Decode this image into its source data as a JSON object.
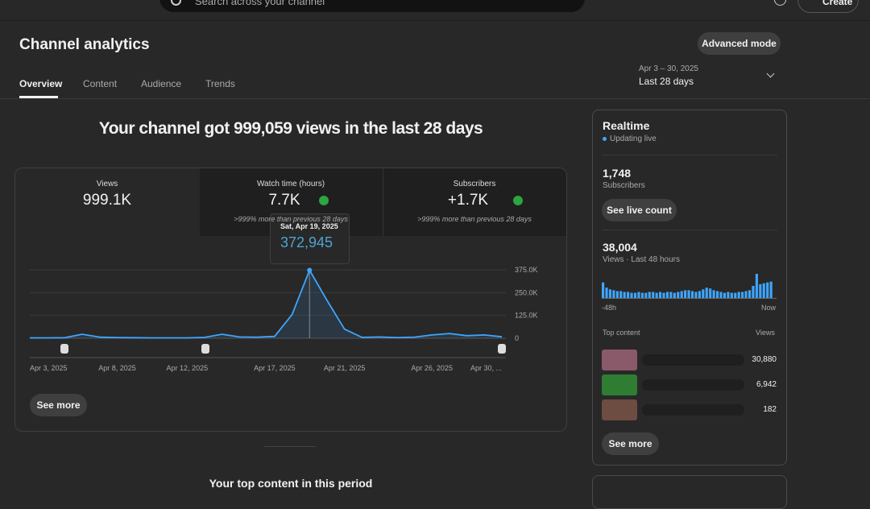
{
  "header": {
    "search_placeholder": "Search across your channel",
    "create": "Create"
  },
  "page": {
    "title": "Channel analytics",
    "advanced_mode": "Advanced mode",
    "tabs": [
      "Overview",
      "Content",
      "Audience",
      "Trends"
    ],
    "date_range": "Apr 3 – 30, 2025",
    "period": "Last 28 days"
  },
  "headline": "Your channel got 999,059 views in the last 28 days",
  "metrics": [
    {
      "label": "Views",
      "value": "999.1K"
    },
    {
      "label": "Watch time (hours)",
      "value": "7.7K",
      "note": ">999% more than previous 28 days"
    },
    {
      "label": "Subscribers",
      "value": "+1.7K",
      "note": ">999% more than previous 28 days"
    }
  ],
  "chart_data": {
    "type": "line",
    "color": "#3ea6ff",
    "categories": [
      "Apr 3, 2025",
      null,
      null,
      null,
      null,
      "Apr 8, 2025",
      null,
      null,
      null,
      "Apr 12, 2025",
      null,
      null,
      null,
      null,
      "Apr 17, 2025",
      null,
      null,
      null,
      "Apr 21, 2025",
      null,
      null,
      null,
      null,
      "Apr 26, 2025",
      null,
      null,
      null,
      "Apr 30, ..."
    ],
    "values": [
      2000,
      2000,
      3000,
      22000,
      6000,
      4000,
      3000,
      2000,
      2000,
      2000,
      5000,
      22000,
      7000,
      6000,
      10000,
      130000,
      372945,
      207000,
      50000,
      5000,
      7000,
      4000,
      6000,
      18000,
      26000,
      14000,
      18000,
      8000
    ],
    "ylim": [
      0,
      375000
    ],
    "yticks": [
      0,
      {
        "value": 125000,
        "label": "125.0K"
      },
      {
        "value": 250000,
        "label": "250.0K"
      },
      {
        "value": 375000,
        "label": "375.0K"
      }
    ],
    "grid": true,
    "tooltip": {
      "title": "Sat, Apr 19, 2025",
      "value": "372,945"
    }
  },
  "see_more": "See more",
  "top_content_title": "Your top content in this period",
  "realtime": {
    "title": "Realtime",
    "status": "Updating live",
    "subscribers": {
      "value": "1,748",
      "label": "Subscribers"
    },
    "see_live_count": "See live count",
    "views": {
      "value": "38,004",
      "label": "Views · Last 48 hours"
    },
    "chart_data": {
      "type": "bar",
      "color": "#3ea6ff",
      "values": [
        1800,
        1200,
        1000,
        900,
        800,
        800,
        700,
        700,
        600,
        600,
        700,
        600,
        600,
        700,
        700,
        600,
        700,
        600,
        700,
        700,
        600,
        700,
        800,
        900,
        900,
        800,
        700,
        800,
        1000,
        1200,
        1100,
        900,
        800,
        700,
        600,
        700,
        600,
        600,
        700,
        700,
        800,
        900,
        1400,
        2800,
        1600,
        1700,
        1800,
        1900
      ],
      "x_labels": [
        "-48h",
        "Now"
      ]
    },
    "top_content": {
      "title": "Top content",
      "column": "Views",
      "rows": [
        "30,880",
        "6,942",
        "182"
      ]
    },
    "see_more": "See more"
  }
}
